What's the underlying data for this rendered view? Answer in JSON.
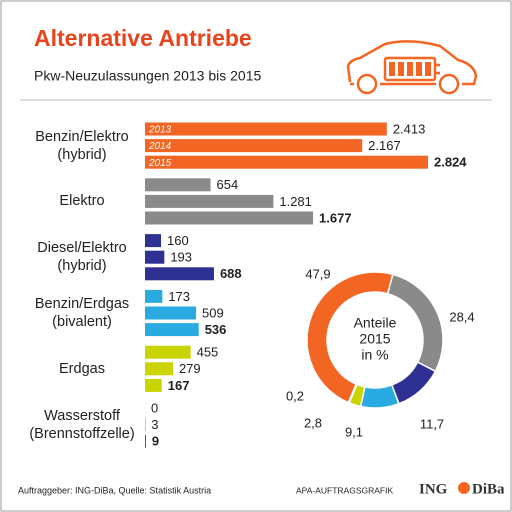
{
  "header": {
    "title": "Alternative Antriebe",
    "subtitle": "Pkw-Neuzulassungen 2013 bis 2015"
  },
  "chart_data": [
    {
      "type": "bar",
      "orientation": "horizontal",
      "categories": [
        "Benzin/Elektro (hybrid)",
        "Elektro",
        "Diesel/Elektro (hybrid)",
        "Benzin/Erdgas (bivalent)",
        "Erdgas",
        "Wasserstoff (Brennstoffzelle)"
      ],
      "colors": [
        "#f26522",
        "#8a8a8a",
        "#2e3192",
        "#29abe2",
        "#c9d400",
        "#a3134a"
      ],
      "series": [
        {
          "name": "2013",
          "values": [
            2413,
            654,
            160,
            173,
            455,
            0
          ],
          "value_labels": [
            "2.413",
            "654",
            "160",
            "173",
            "455",
            "0"
          ]
        },
        {
          "name": "2014",
          "values": [
            2167,
            1281,
            193,
            509,
            279,
            3
          ],
          "value_labels": [
            "2.167",
            "1.281",
            "193",
            "509",
            "279",
            "3"
          ]
        },
        {
          "name": "2015",
          "values": [
            2824,
            1677,
            688,
            536,
            167,
            9
          ],
          "value_labels": [
            "2.824",
            "1.677",
            "688",
            "536",
            "167",
            "9"
          ]
        }
      ]
    },
    {
      "type": "donut",
      "center_label": [
        "Anteile",
        "2015",
        "in %"
      ],
      "values": [
        47.9,
        28.4,
        11.7,
        9.1,
        2.8,
        0.2
      ],
      "value_labels": [
        "47,9",
        "28,4",
        "11,7",
        "9,1",
        "2,8",
        "0,2"
      ],
      "colors": [
        "#f26522",
        "#8a8a8a",
        "#2e3192",
        "#29abe2",
        "#c9d400",
        "#a3134a"
      ]
    }
  ],
  "footer": {
    "source": "Auftraggeber: ING-DiBa, Quelle: Statistik Austria",
    "credit": "APA-AUFTRAGSGRAFIK",
    "logo": [
      "ING",
      "DiBa"
    ]
  }
}
